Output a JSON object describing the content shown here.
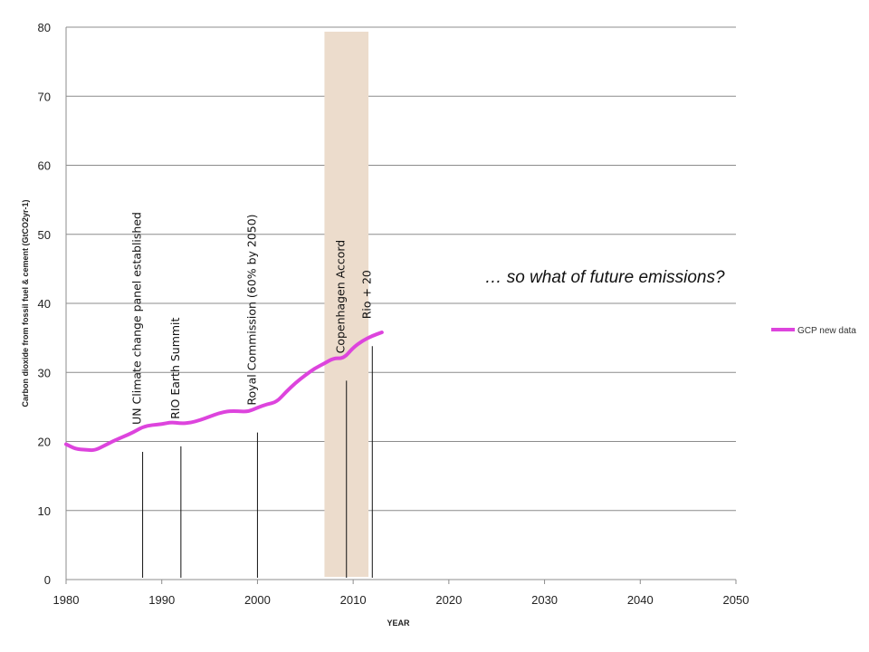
{
  "chart_data": {
    "type": "line",
    "title": "",
    "xlabel": "YEAR",
    "ylabel": "Carbon dioxide from fossil fuel & cement (GtCO2yr-1)",
    "xlim": [
      1980,
      2050
    ],
    "ylim": [
      0,
      80
    ],
    "x_ticks": [
      1980,
      1990,
      2000,
      2010,
      2020,
      2030,
      2040,
      2050
    ],
    "y_ticks": [
      0,
      10,
      20,
      30,
      40,
      50,
      60,
      70,
      80
    ],
    "grid": "horizontal",
    "legend_position": "right",
    "series": [
      {
        "name": "GCP new data",
        "color": "#dd44dd",
        "x": [
          1980,
          1981,
          1982,
          1983,
          1984,
          1985,
          1986,
          1987,
          1988,
          1989,
          1990,
          1991,
          1992,
          1993,
          1994,
          1995,
          1996,
          1997,
          1998,
          1999,
          2000,
          2001,
          2002,
          2003,
          2004,
          2005,
          2006,
          2007,
          2008,
          2009,
          2010,
          2011,
          2012,
          2013
        ],
        "y": [
          19.6,
          18.9,
          18.8,
          18.7,
          19.4,
          20.1,
          20.7,
          21.3,
          22.1,
          22.4,
          22.5,
          22.8,
          22.6,
          22.7,
          23.1,
          23.6,
          24.1,
          24.4,
          24.4,
          24.3,
          24.9,
          25.4,
          25.7,
          27.2,
          28.5,
          29.6,
          30.6,
          31.3,
          32.1,
          32.0,
          33.6,
          34.6,
          35.3,
          35.8
        ]
      }
    ],
    "shaded_region": {
      "x_start": 2007,
      "x_end": 2011.6,
      "color": "#ecdccc"
    },
    "annotations": [
      {
        "label": "UN Climate change panel established",
        "x": 1988,
        "line_top": 18.5
      },
      {
        "label": "RIO Earth Summit",
        "x": 1992,
        "line_top": 19.3
      },
      {
        "label": "Royal Commission (60% by 2050)",
        "x": 2000,
        "line_top": 21.3
      },
      {
        "label": "Copenhagen  Accord",
        "x": 2009.3,
        "line_top": 28.8
      },
      {
        "label": "Rio + 20",
        "x": 2012,
        "line_top": 33.8
      }
    ],
    "callout": "… so what of future emissions?"
  }
}
